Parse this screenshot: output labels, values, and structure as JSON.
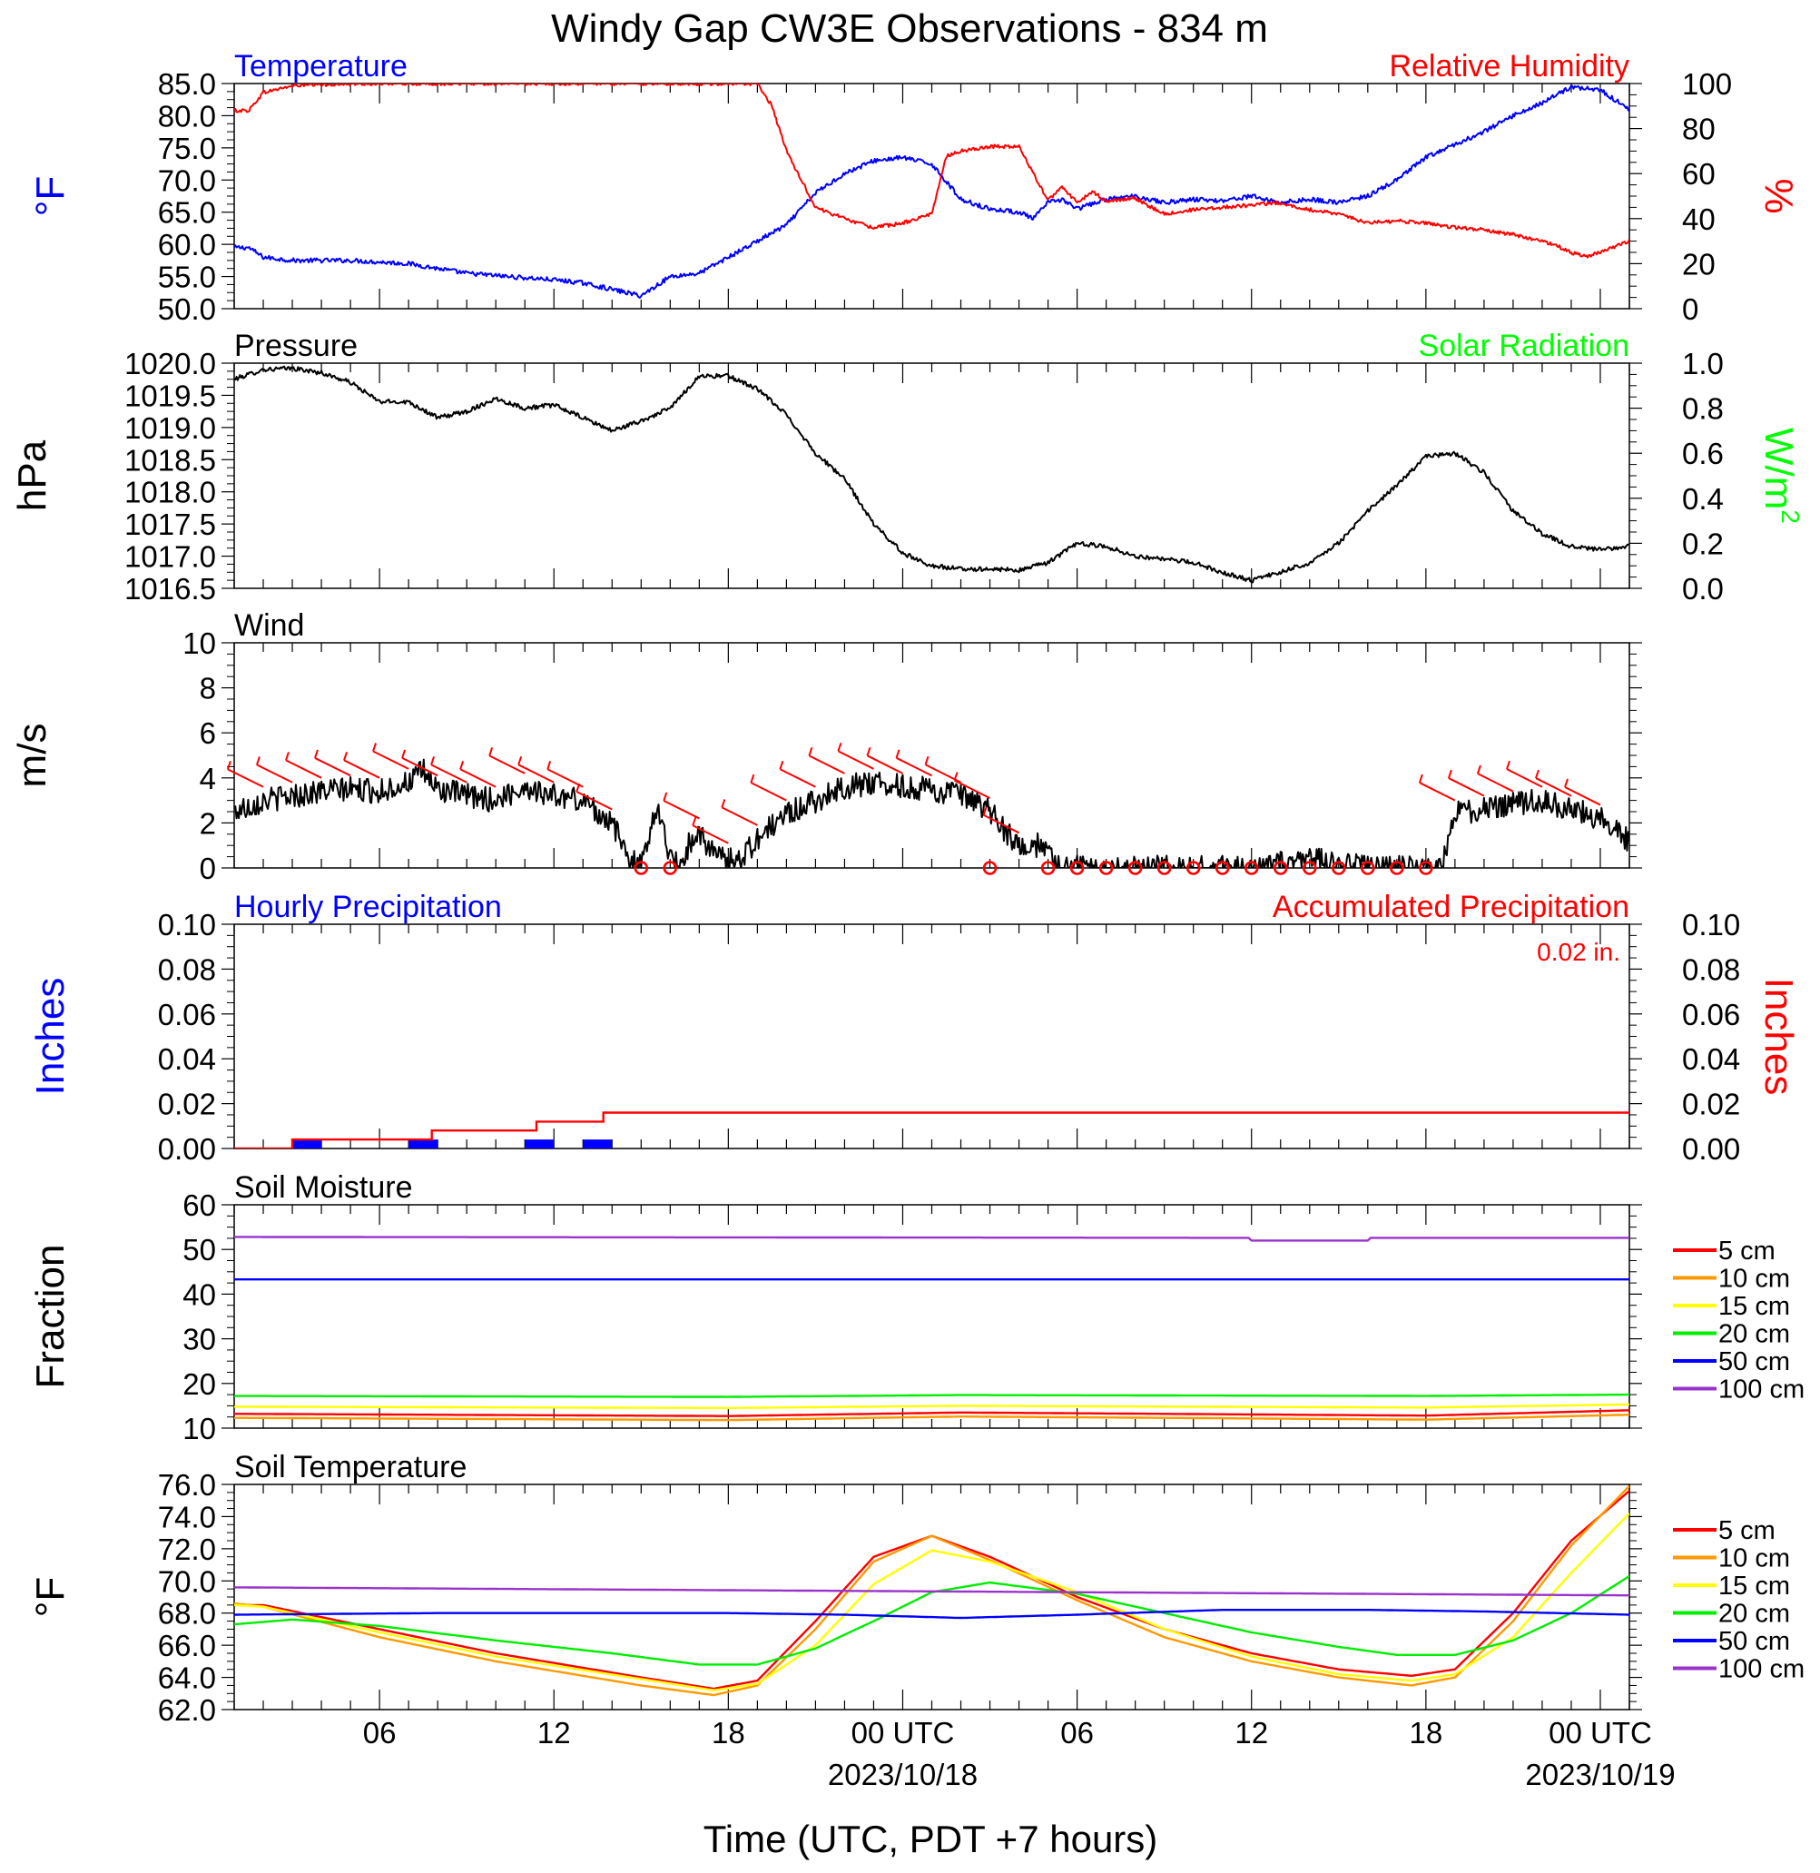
{
  "page": {
    "title": "Windy Gap CW3E Observations - 834 m",
    "xlabel": "Time (UTC, PDT +7 hours)"
  },
  "colors": {
    "temperature": "#0000ff",
    "humidity": "#ff0000",
    "pressure": "#000000",
    "solar": "#00ff00",
    "wind": "#000000",
    "wind_barb": "#ff0000",
    "hourly_precip": "#0000ff",
    "accum_precip": "#ff0000",
    "depth_5": "#ff0000",
    "depth_10": "#ff9900",
    "depth_15": "#ffff00",
    "depth_20": "#00ee00",
    "depth_50": "#0000ff",
    "depth_100": "#9933cc"
  },
  "x_axis": {
    "domain_hours": [
      1,
      49
    ],
    "ticks": [
      {
        "h": 6,
        "label": "06"
      },
      {
        "h": 12,
        "label": "12"
      },
      {
        "h": 18,
        "label": "18"
      },
      {
        "h": 24,
        "label": "00 UTC",
        "sub": "2023/10/18"
      },
      {
        "h": 30,
        "label": "06"
      },
      {
        "h": 36,
        "label": "12"
      },
      {
        "h": 42,
        "label": "18"
      },
      {
        "h": 48,
        "label": "00 UTC",
        "sub": "2023/10/19"
      }
    ]
  },
  "chart_data": [
    {
      "id": "temp-rh",
      "type": "line",
      "left_title": "Temperature",
      "right_title": "Relative Humidity",
      "left_ylabel": "°F",
      "right_ylabel": "%",
      "left_ylim": [
        50,
        85
      ],
      "left_ticks": [
        "50.0",
        "55.0",
        "60.0",
        "65.0",
        "70.0",
        "75.0",
        "80.0",
        "85.0"
      ],
      "right_ylim": [
        0,
        100
      ],
      "right_ticks": [
        "0",
        "20",
        "40",
        "60",
        "80",
        "100"
      ],
      "series": [
        {
          "name": "Temperature",
          "axis": "left",
          "color_key": "temperature",
          "noise": 0.35,
          "x": [
            1,
            1.5,
            2,
            3,
            5,
            7,
            9,
            11,
            12,
            13,
            14,
            15,
            16,
            17,
            18,
            19,
            20,
            21,
            22,
            23,
            24,
            25,
            26,
            27,
            28,
            28.5,
            29,
            29.5,
            30,
            31,
            32,
            33,
            34,
            35,
            36,
            37,
            38,
            39,
            40,
            41,
            42,
            43,
            44,
            45,
            46,
            47,
            48,
            49
          ],
          "y": [
            59.5,
            59.5,
            58.0,
            57.5,
            57.5,
            57.0,
            55.5,
            54.8,
            54.5,
            54.0,
            53.0,
            52.0,
            55.0,
            55.5,
            58.0,
            60.5,
            63.0,
            68.0,
            71.0,
            73.0,
            73.5,
            72.5,
            67.0,
            65.5,
            65.0,
            64.0,
            66.5,
            67.0,
            65.5,
            67.0,
            67.5,
            66.5,
            67.0,
            66.8,
            67.5,
            66.5,
            67.0,
            66.5,
            67.5,
            70.0,
            73.5,
            75.5,
            77.5,
            80.0,
            82.0,
            84.5,
            84.0,
            81.0
          ]
        },
        {
          "name": "Relative Humidity",
          "axis": "right",
          "color_key": "humidity",
          "noise": 0.8,
          "x": [
            1,
            1.5,
            2,
            3,
            5,
            10,
            19,
            19.5,
            20,
            21,
            22,
            23,
            24,
            25,
            25.5,
            26,
            27,
            28,
            28.5,
            29,
            29.5,
            30,
            30.5,
            31,
            32,
            33,
            34,
            35,
            36,
            37,
            38,
            39,
            40,
            41,
            42,
            43,
            44,
            45,
            46,
            46.5,
            47,
            47.5,
            48,
            49
          ],
          "y": [
            88,
            88,
            96,
            99,
            100,
            100,
            100,
            90,
            70,
            45,
            40,
            36,
            38,
            42,
            68,
            70,
            72,
            72,
            60,
            48,
            54,
            47,
            52,
            48,
            49,
            42,
            44,
            45,
            46,
            47,
            44,
            42,
            38,
            39,
            38,
            36,
            35,
            33,
            30,
            28,
            25,
            23,
            25,
            30
          ]
        }
      ]
    },
    {
      "id": "pressure",
      "type": "line",
      "left_title": "Pressure",
      "right_title": "Solar Radiation",
      "left_ylabel": "hPa",
      "right_ylabel": "W/m",
      "right_ylabel_sup": "2",
      "left_ylim": [
        1016.5,
        1020.0
      ],
      "left_ticks": [
        "1016.5",
        "1017.0",
        "1017.5",
        "1018.0",
        "1018.5",
        "1019.0",
        "1019.5",
        "1020.0"
      ],
      "right_ylim": [
        0,
        1
      ],
      "right_ticks": [
        "0.0",
        "0.2",
        "0.4",
        "0.6",
        "0.8",
        "1.0"
      ],
      "series": [
        {
          "name": "Pressure",
          "axis": "left",
          "color_key": "pressure",
          "noise": 0.035,
          "x": [
            1,
            2,
            3,
            4,
            5,
            6,
            7,
            8,
            9,
            10,
            11,
            12,
            13,
            14,
            15,
            16,
            17,
            18,
            19,
            20,
            21,
            22,
            23,
            24,
            25,
            26,
            27,
            28,
            29,
            30,
            31,
            32,
            33,
            34,
            35,
            36,
            37,
            38,
            39,
            40,
            41,
            42,
            43,
            44,
            45,
            46,
            47,
            48,
            49
          ],
          "y": [
            1019.75,
            1019.9,
            1019.92,
            1019.85,
            1019.7,
            1019.4,
            1019.4,
            1019.15,
            1019.25,
            1019.45,
            1019.3,
            1019.35,
            1019.15,
            1018.95,
            1019.1,
            1019.3,
            1019.8,
            1019.8,
            1019.6,
            1019.2,
            1018.6,
            1018.2,
            1017.5,
            1017.05,
            1016.85,
            1016.8,
            1016.8,
            1016.78,
            1016.9,
            1017.2,
            1017.15,
            1017.0,
            1016.95,
            1016.9,
            1016.75,
            1016.62,
            1016.75,
            1016.9,
            1017.2,
            1017.7,
            1018.1,
            1018.55,
            1018.6,
            1018.3,
            1017.7,
            1017.35,
            1017.15,
            1017.1,
            1017.15
          ]
        }
      ]
    },
    {
      "id": "wind",
      "type": "line",
      "left_title": "Wind",
      "left_ylabel": "m/s",
      "left_ylim": [
        0,
        10
      ],
      "left_ticks": [
        "0",
        "2",
        "4",
        "6",
        "8",
        "10"
      ],
      "series": [
        {
          "name": "Wind",
          "axis": "left",
          "color_key": "wind",
          "noise": 0.55,
          "x": [
            1,
            2,
            3,
            4,
            5,
            6,
            7,
            7.5,
            8,
            9,
            10,
            11,
            12,
            13,
            14,
            14.5,
            15,
            15.5,
            16,
            16.3,
            16.7,
            17,
            17.5,
            18,
            18.5,
            19,
            20,
            21,
            22,
            23,
            24,
            25,
            26,
            27,
            27.8,
            28.3,
            28.8,
            29.2,
            30,
            35,
            36,
            37,
            38,
            40,
            41,
            42,
            42.5,
            43,
            44,
            45,
            46,
            47,
            48,
            49
          ],
          "y": [
            2.5,
            3.0,
            3.2,
            3.4,
            3.5,
            3.4,
            3.8,
            4.3,
            3.5,
            3.2,
            3.0,
            3.6,
            3.2,
            3.0,
            2.0,
            0.6,
            0.0,
            2.8,
            0.6,
            0.0,
            1.2,
            1.6,
            0.6,
            0.3,
            0.5,
            1.3,
            2.4,
            3.0,
            3.6,
            3.8,
            3.6,
            3.5,
            3.2,
            2.5,
            1.2,
            0.6,
            1.2,
            0.2,
            0.0,
            0.0,
            0.0,
            0.2,
            0.4,
            0.0,
            0.0,
            0.0,
            0.0,
            2.4,
            2.6,
            2.8,
            3.0,
            2.6,
            2.2,
            1.2
          ]
        }
      ],
      "barbs_hours": [
        2,
        3,
        4,
        5,
        6,
        7,
        8,
        9,
        10,
        11,
        12,
        13,
        14,
        17,
        18,
        19,
        20,
        21,
        22,
        23,
        24,
        25,
        26,
        27,
        28,
        43,
        44,
        45,
        46,
        47,
        48
      ],
      "calm_hours": [
        15,
        16,
        27,
        29,
        30,
        31,
        32,
        33,
        34,
        35,
        36,
        37,
        38,
        39,
        40,
        41,
        42
      ]
    },
    {
      "id": "precip",
      "type": "bar",
      "left_title": "Hourly Precipitation",
      "right_title": "Accumulated Precipitation",
      "total_label": "0.02 in.",
      "left_ylabel": "Inches",
      "right_ylabel": "Inches",
      "left_ylim": [
        0,
        0.1
      ],
      "left_ticks": [
        "0.00",
        "0.02",
        "0.04",
        "0.06",
        "0.08",
        "0.10"
      ],
      "right_ylim": [
        0,
        0.1
      ],
      "right_ticks": [
        "0.00",
        "0.02",
        "0.04",
        "0.06",
        "0.08",
        "0.10"
      ],
      "hourly": [
        {
          "start": 3,
          "end": 4,
          "value": 0.004
        },
        {
          "start": 7,
          "end": 8,
          "value": 0.004
        },
        {
          "start": 11,
          "end": 12,
          "value": 0.004
        },
        {
          "start": 13,
          "end": 14,
          "value": 0.004
        }
      ],
      "accum_steps": {
        "x": [
          1,
          3,
          3,
          7.8,
          7.8,
          11.4,
          11.4,
          13.7,
          13.7,
          49
        ],
        "y": [
          0,
          0,
          0.004,
          0.004,
          0.008,
          0.008,
          0.012,
          0.012,
          0.016,
          0.016
        ]
      }
    },
    {
      "id": "soil-moisture",
      "type": "line",
      "left_title": "Soil Moisture",
      "left_ylabel": "Fraction",
      "left_ylim": [
        10,
        60
      ],
      "left_ticks": [
        "10",
        "20",
        "30",
        "40",
        "50",
        "60"
      ],
      "legend": [
        "5 cm",
        "10 cm",
        "15 cm",
        "20 cm",
        "50 cm",
        "100 cm"
      ],
      "series": [
        {
          "name": "5 cm",
          "axis": "left",
          "color_key": "depth_5",
          "x": [
            1,
            18,
            26,
            42,
            49
          ],
          "y": [
            13.2,
            12.7,
            13.5,
            12.8,
            14.0
          ]
        },
        {
          "name": "10 cm",
          "axis": "left",
          "color_key": "depth_10",
          "x": [
            1,
            18,
            26,
            42,
            49
          ],
          "y": [
            12.3,
            11.8,
            12.6,
            11.9,
            13.0
          ]
        },
        {
          "name": "15 cm",
          "axis": "left",
          "color_key": "depth_15",
          "x": [
            1,
            18,
            26,
            42,
            49
          ],
          "y": [
            14.8,
            14.5,
            15.0,
            14.6,
            15.3
          ]
        },
        {
          "name": "20 cm",
          "axis": "left",
          "color_key": "depth_20",
          "x": [
            1,
            18,
            26,
            42,
            49
          ],
          "y": [
            17.2,
            17.0,
            17.4,
            17.2,
            17.5
          ]
        },
        {
          "name": "50 cm",
          "axis": "left",
          "color_key": "depth_50",
          "x": [
            1,
            49
          ],
          "y": [
            43.3,
            43.3
          ]
        },
        {
          "name": "100 cm",
          "axis": "left",
          "color_key": "depth_100",
          "x": [
            1,
            35.9,
            36,
            40,
            40.1,
            49
          ],
          "y": [
            52.8,
            52.6,
            52.0,
            52.0,
            52.6,
            52.6
          ]
        }
      ]
    },
    {
      "id": "soil-temperature",
      "type": "line",
      "left_title": "Soil Temperature",
      "left_ylabel": "°F",
      "left_ylim": [
        62,
        76
      ],
      "left_ticks": [
        "62.0",
        "64.0",
        "66.0",
        "68.0",
        "70.0",
        "72.0",
        "74.0",
        "76.0"
      ],
      "legend": [
        "5 cm",
        "10 cm",
        "15 cm",
        "20 cm",
        "50 cm",
        "100 cm"
      ],
      "series": [
        {
          "name": "5 cm",
          "axis": "left",
          "color_key": "depth_5",
          "x": [
            1,
            2,
            6,
            10,
            15,
            17.5,
            19,
            21,
            23,
            25,
            27,
            30,
            33,
            36,
            39,
            41.5,
            43,
            45,
            47,
            49
          ],
          "y": [
            68.5,
            68.5,
            67.0,
            65.5,
            64.0,
            63.3,
            63.8,
            67.5,
            71.5,
            72.8,
            71.5,
            69.0,
            67.0,
            65.5,
            64.5,
            64.1,
            64.5,
            68.0,
            72.5,
            75.6
          ]
        },
        {
          "name": "10 cm",
          "axis": "left",
          "color_key": "depth_10",
          "x": [
            1,
            2,
            6,
            10,
            15,
            17.5,
            19,
            21,
            23,
            25,
            27,
            30,
            33,
            36,
            39,
            41.5,
            43,
            45,
            47,
            49
          ],
          "y": [
            68.6,
            68.4,
            66.5,
            65.0,
            63.5,
            62.9,
            63.5,
            67.0,
            71.2,
            72.8,
            71.3,
            68.8,
            66.5,
            65.0,
            64.0,
            63.5,
            64.0,
            67.5,
            72.2,
            75.9
          ]
        },
        {
          "name": "15 cm",
          "axis": "left",
          "color_key": "depth_15",
          "x": [
            1,
            2,
            6,
            10,
            15,
            17.5,
            19,
            21,
            23,
            25,
            27,
            30,
            33,
            36,
            39,
            41.5,
            43,
            45,
            47,
            49
          ],
          "y": [
            68.5,
            68.4,
            66.8,
            65.3,
            63.9,
            63.2,
            63.6,
            66.0,
            69.8,
            71.9,
            71.2,
            69.3,
            67.0,
            65.3,
            64.2,
            63.8,
            64.2,
            66.5,
            70.5,
            74.2
          ]
        },
        {
          "name": "20 cm",
          "axis": "left",
          "color_key": "depth_20",
          "x": [
            1,
            3,
            6,
            10,
            14,
            17,
            19,
            21,
            23,
            25,
            27,
            30,
            33,
            36,
            39,
            41,
            43,
            45,
            47,
            49
          ],
          "y": [
            67.3,
            67.6,
            67.2,
            66.3,
            65.5,
            64.8,
            64.8,
            65.8,
            67.5,
            69.3,
            69.9,
            69.2,
            68.0,
            66.8,
            65.9,
            65.4,
            65.4,
            66.3,
            68.0,
            70.3
          ]
        },
        {
          "name": "50 cm",
          "axis": "left",
          "color_key": "depth_50",
          "x": [
            1,
            8,
            13,
            18,
            22,
            26,
            30,
            35,
            40,
            44,
            49
          ],
          "y": [
            67.9,
            68.0,
            68.0,
            68.0,
            67.9,
            67.7,
            67.9,
            68.2,
            68.2,
            68.1,
            67.9
          ]
        },
        {
          "name": "100 cm",
          "axis": "left",
          "color_key": "depth_100",
          "x": [
            1,
            49
          ],
          "y": [
            69.6,
            69.1
          ]
        }
      ]
    }
  ]
}
